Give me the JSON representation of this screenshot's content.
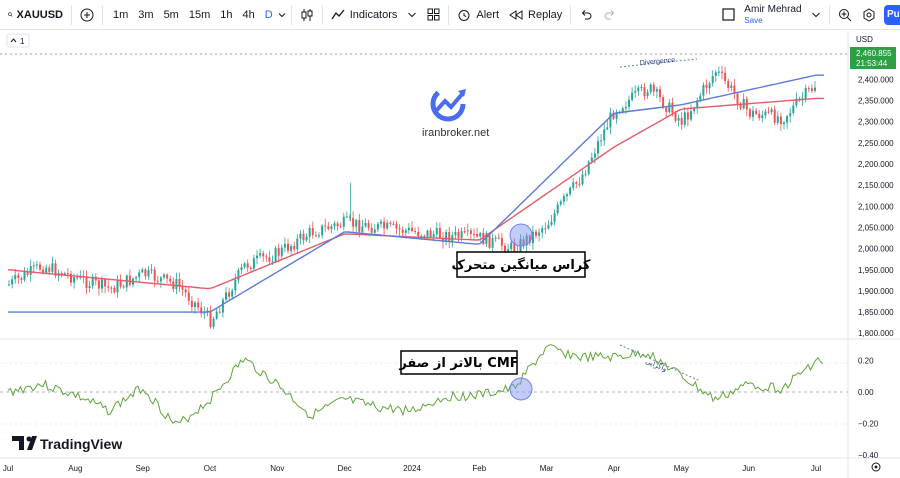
{
  "toolbar": {
    "symbol": "XAUUSD",
    "timeframes": [
      "1m",
      "3m",
      "5m",
      "15m",
      "1h",
      "4h",
      "D"
    ],
    "active_timeframe": "D",
    "indicators_label": "Indicators",
    "alert_label": "Alert",
    "replay_label": "Replay",
    "user_name": "Amir Mehrad",
    "save_label": "Save",
    "publish_label": "Pu"
  },
  "legend": {
    "collapse_count": "1"
  },
  "watermark": {
    "site": "iranbroker.net"
  },
  "branding": {
    "logo_text": "TradingView"
  },
  "price_axis": {
    "currency": "USD",
    "last_price": "2,460.855",
    "countdown": "21:53:44",
    "labels": [
      "2,400.000",
      "2,350.000",
      "2,300.000",
      "2,250.000",
      "2,200.000",
      "2,150.000",
      "2,100.000",
      "2,050.000",
      "2,000.000",
      "1,950.000",
      "1,900.000",
      "1,850.000",
      "1,800.000"
    ]
  },
  "cmf_axis": {
    "labels": [
      "0.20",
      "0.00",
      "−0.20",
      "−0.40"
    ]
  },
  "time_axis": {
    "labels": [
      "Jul",
      "Aug",
      "Sep",
      "Oct",
      "Nov",
      "Dec",
      "2024",
      "Feb",
      "Mar",
      "Apr",
      "May",
      "Jun",
      "Jul"
    ]
  },
  "annotations": {
    "divergence_top": "Divergence",
    "divergence_bottom": "واگرایی",
    "ma_cross": "کراس میانگین متحرک",
    "cmf_above_zero": "CMF بالاتر از صفر"
  },
  "colors": {
    "up": "#26a69a",
    "down": "#ef5350",
    "fast_ma": "#5b7bd5",
    "slow_ma": "#e45b6a",
    "cmf": "#5ea53a",
    "accent": "#2962ff",
    "last_price_bg": "#2e9f45"
  },
  "chart_data": [
    {
      "type": "candlestick",
      "title": "XAUUSD, D",
      "ylim": [
        1780,
        2480
      ],
      "ylabel": "USD",
      "x": [
        "Jul 2023",
        "Aug",
        "Sep",
        "Oct",
        "Nov",
        "Dec",
        "Jan 2024",
        "Feb",
        "Mar",
        "Apr",
        "May",
        "Jun",
        "Jul 2024"
      ],
      "close_path": [
        [
          "Jul 2023",
          1915
        ],
        [
          "Jul 2023",
          1960
        ],
        [
          "Aug",
          1930
        ],
        [
          "Aug",
          1905
        ],
        [
          "Sep",
          1940
        ],
        [
          "Sep",
          1915
        ],
        [
          "Oct",
          1830
        ],
        [
          "Oct",
          1960
        ],
        [
          "Nov",
          1990
        ],
        [
          "Nov",
          2040
        ],
        [
          "Dec",
          2060
        ],
        [
          "Dec",
          2050
        ],
        [
          "Jan 2024",
          2040
        ],
        [
          "Jan 2024",
          2030
        ],
        [
          "Feb",
          2025
        ],
        [
          "Feb",
          2000
        ],
        [
          "Mar",
          2060
        ],
        [
          "Mar",
          2170
        ],
        [
          "Apr",
          2330
        ],
        [
          "Apr",
          2380
        ],
        [
          "May",
          2300
        ],
        [
          "May",
          2420
        ],
        [
          "Jun",
          2320
        ],
        [
          "Jun",
          2310
        ],
        [
          "Jul 2024",
          2390
        ],
        [
          "Jul 2024",
          2460
        ]
      ],
      "moving_averages": [
        {
          "name": "",
          "values_at": [
            [
              "Oct",
              1850
            ],
            [
              "Dec",
              2040
            ],
            [
              "Feb",
              2010
            ],
            [
              "Apr",
              2320
            ],
            [
              "May",
              2340
            ],
            [
              "Jul 2024",
              2410
            ]
          ]
        },
        {
          "name": "",
          "values_at": [
            [
              "Jul 2023",
              1950
            ],
            [
              "Oct",
              1905
            ],
            [
              "Dec",
              2035
            ],
            [
              "Feb",
              2020
            ],
            [
              "Apr",
              2240
            ],
            [
              "May",
              2330
            ],
            [
              "Jul 2024",
              2355
            ]
          ]
        }
      ]
    },
    {
      "type": "line",
      "title": "CMF",
      "ylim": [
        -0.43,
        0.27
      ],
      "series": [
        {
          "name": "",
          "points": [
            [
              "Jul 2023",
              0.0
            ],
            [
              "Jul 2023",
              0.05
            ],
            [
              "Aug",
              -0.02
            ],
            [
              "Aug",
              -0.12
            ],
            [
              "Sep",
              0.03
            ],
            [
              "Sep",
              -0.22
            ],
            [
              "Oct",
              -0.05
            ],
            [
              "Oct",
              0.21
            ],
            [
              "Nov",
              0.05
            ],
            [
              "Nov",
              -0.15
            ],
            [
              "Dec",
              -0.05
            ],
            [
              "Dec",
              -0.1
            ],
            [
              "Jan 2024",
              -0.12
            ],
            [
              "Jan 2024",
              -0.03
            ],
            [
              "Feb",
              -0.02
            ],
            [
              "Feb",
              0.02
            ],
            [
              "Mar",
              0.28
            ],
            [
              "Mar",
              0.22
            ],
            [
              "Apr",
              0.22
            ],
            [
              "Apr",
              0.25
            ],
            [
              "May",
              0.1
            ],
            [
              "May",
              -0.05
            ],
            [
              "Jun",
              0.05
            ],
            [
              "Jun",
              0.02
            ],
            [
              "Jul 2024",
              0.2
            ],
            [
              "Jul 2024",
              0.14
            ]
          ]
        }
      ]
    }
  ]
}
